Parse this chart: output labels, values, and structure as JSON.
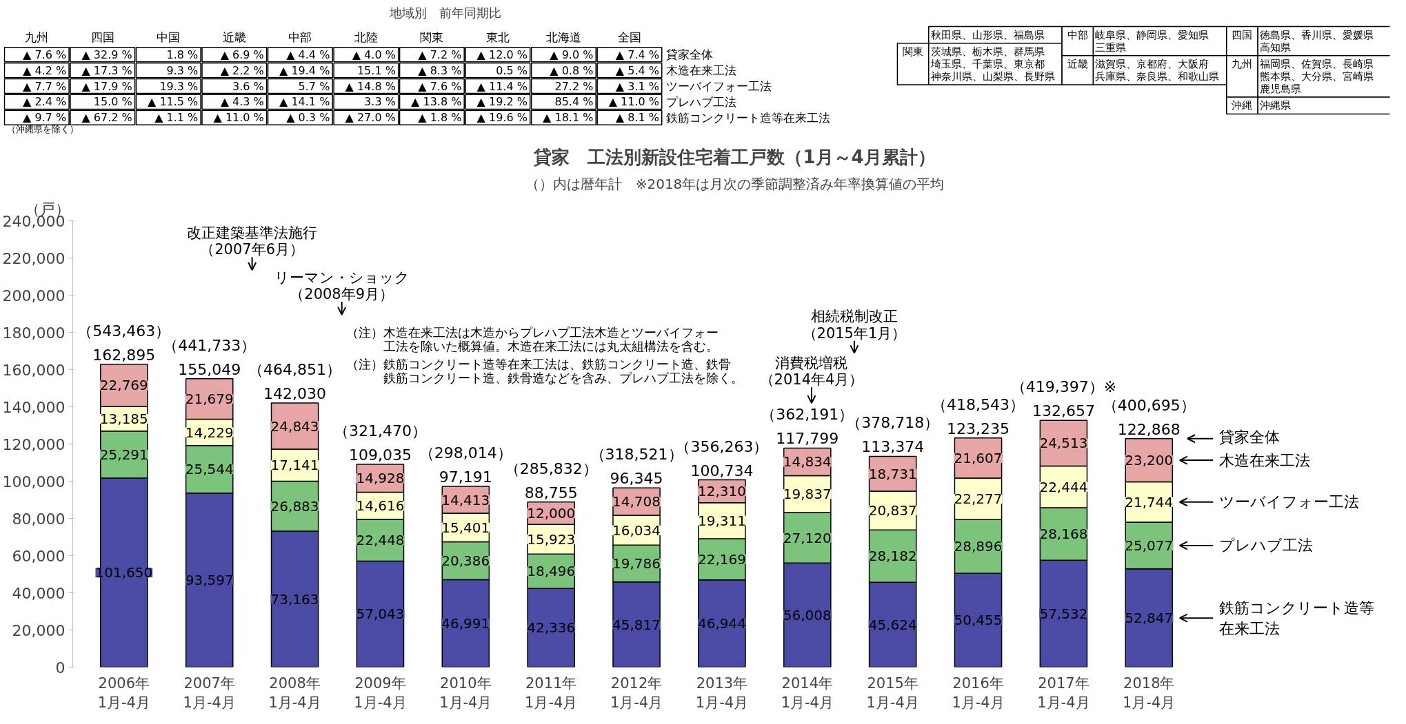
{
  "chart_data": [
    {
      "type": "bar",
      "title": "貸家　工法別新設住宅着工戸数（1月～4月累計）",
      "subtitle": "（）内は暦年計　※2018年は月次の季節調整済み年率換算値の平均",
      "ylabel": "（戸）",
      "categories": [
        "2006年\n1月-4月",
        "2007年\n1月-4月",
        "2008年\n1月-4月",
        "2009年\n1月-4月",
        "2010年\n1月-4月",
        "2011年\n1月-4月",
        "2012年\n1月-4月",
        "2013年\n1月-4月",
        "2014年\n1月-4月",
        "2015年\n1月-4月",
        "2016年\n1月-4月",
        "2017年\n1月-4月",
        "2018年\n1月-4月"
      ],
      "stacked": true,
      "legend": "right",
      "series": [
        {
          "name": "鉄筋コンクリート造等在来工法",
          "color": "#4b4ba6",
          "values": [
            101650,
            93597,
            73163,
            57043,
            46991,
            42336,
            45817,
            46944,
            56008,
            45624,
            50455,
            57532,
            52847
          ],
          "value_labels": [
            "101,650",
            "93,597",
            "73,163",
            "57,043",
            "46,991",
            "42,336",
            "45,817",
            "46,944",
            "56,008",
            "45,624",
            "50,455",
            "57,532",
            "52,847"
          ]
        },
        {
          "name": "プレハブ工法",
          "color": "#7cc47c",
          "values": [
            25291,
            25544,
            26883,
            22448,
            20386,
            18496,
            19786,
            22169,
            27120,
            28182,
            28896,
            28168,
            25077
          ],
          "value_labels": [
            "25,291",
            "25,544",
            "26,883",
            "22,448",
            "20,386",
            "18,496",
            "19,786",
            "22,169",
            "27,120",
            "28,182",
            "28,896",
            "28,168",
            "25,077"
          ]
        },
        {
          "name": "ツーバイフォー工法",
          "color": "#ffffcc",
          "values": [
            13185,
            14229,
            17141,
            14616,
            15401,
            15923,
            16034,
            19311,
            19837,
            20837,
            22277,
            22444,
            21744
          ],
          "value_labels": [
            "13,185",
            "14,229",
            "17,141",
            "14,616",
            "15,401",
            "15,923",
            "16,034",
            "19,311",
            "19,837",
            "20,837",
            "22,277",
            "22,444",
            "21,744"
          ]
        },
        {
          "name": "木造在来工法",
          "color": "#e6a6a6",
          "values": [
            22769,
            21679,
            24843,
            14928,
            14413,
            12000,
            14708,
            12310,
            14834,
            18731,
            21607,
            24513,
            23200
          ],
          "value_labels": [
            "22,769",
            "21,679",
            "24,843",
            "14,928",
            "14,413",
            "12,000",
            "14,708",
            "12,310",
            "14,834",
            "18,731",
            "21,607",
            "24,513",
            "23,200"
          ]
        }
      ],
      "totals": [
        "162,895",
        "155,049",
        "142,030",
        "109,035",
        "97,191",
        "88,755",
        "96,345",
        "100,734",
        "117,799",
        "113,374",
        "123,235",
        "132,657",
        "122,868"
      ],
      "ylim": [
        0,
        240000
      ],
      "yticks": [
        {
          "value": 0,
          "label": "0"
        },
        {
          "value": 20000,
          "label": "20,000"
        },
        {
          "value": 40000,
          "label": "40,000"
        },
        {
          "value": 60000,
          "label": "60,000"
        },
        {
          "value": 80000,
          "label": "80,000"
        },
        {
          "value": 100000,
          "label": "100,000"
        },
        {
          "value": 120000,
          "label": "120,000"
        },
        {
          "value": 140000,
          "label": "140,000"
        },
        {
          "value": 160000,
          "label": "160,000"
        },
        {
          "value": 180000,
          "label": "180,000"
        },
        {
          "value": 200000,
          "label": "200,000"
        },
        {
          "value": 220000,
          "label": "220,000"
        },
        {
          "value": 240000,
          "label": "240,000"
        }
      ],
      "annotations": [
        "改正建築基準法施行",
        "（2007年6月）",
        "リーマン・ショック",
        "（2008年9月）",
        "消費税増税",
        "（2014年4月）",
        "相続税制改正",
        "（2015年1月）",
        "（注）木造在来工法は木造からプレハブ工法木造とツーバイフォー",
        "工法を除いた概算値。木造在来工法には丸太組構法を含む。",
        "（注）鉄筋コンクリート造等在来工法は、鉄筋コンクリート造、鉄骨",
        "鉄筋コンクリート造、鉄骨造などを含み、プレハブ工法を除く。",
        "貸家全体",
        {
          "text": "（543,463）",
          "x": "2006年\n1月-4月",
          "y": 162895
        },
        {
          "text": "（441,733）",
          "x": "2007年\n1月-4月",
          "y": 155049
        },
        {
          "text": "（464,851）",
          "x": "2008年\n1月-4月",
          "y": 142030
        },
        {
          "text": "（321,470）",
          "x": "2009年\n1月-4月",
          "y": 109035
        },
        {
          "text": "（298,014）",
          "x": "2010年\n1月-4月",
          "y": 97191
        },
        {
          "text": "（285,832）",
          "x": "2011年\n1月-4月",
          "y": 88755
        },
        {
          "text": "（318,521）",
          "x": "2012年\n1月-4月",
          "y": 96345
        },
        {
          "text": "（356,263）",
          "x": "2013年\n1月-4月",
          "y": 100734
        },
        {
          "text": "（362,191）",
          "x": "2014年\n1月-4月",
          "y": 117799
        },
        {
          "text": "（378,718）",
          "x": "2015年\n1月-4月",
          "y": 113374
        },
        {
          "text": "（418,543）",
          "x": "2016年\n1月-4月",
          "y": 123235
        },
        {
          "text": "（419,397）※",
          "x": "2017年\n1月-4月",
          "y": 132657
        },
        {
          "text": "（400,695）",
          "x": "2018年\n1月-4月",
          "y": 122868
        }
      ]
    },
    {
      "type": "other",
      "title": "地域別　前年同期比",
      "categories": [
        "九州",
        "四国",
        "中国",
        "近畿",
        "中部",
        "北陸",
        "関東",
        "東北",
        "北海道",
        "全国"
      ],
      "y2_categories": [
        "貸家全体",
        "木造在来工法",
        "ツーバイフォー工法",
        "プレハブ工法",
        "鉄筋コンクリート造等在来工法"
      ],
      "cell_labels": [
        [
          "▲ 7.6 %",
          "▲ 32.9 %",
          "1.8 %",
          "▲ 6.9 %",
          "▲ 4.4 %",
          "▲ 4.0 %",
          "▲ 7.2 %",
          "▲ 12.0 %",
          "▲ 9.0 %",
          "▲ 7.4 %"
        ],
        [
          "▲ 4.2 %",
          "▲ 17.3 %",
          "9.3 %",
          "▲ 2.2 %",
          "▲ 19.4 %",
          "15.1 %",
          "▲ 8.3 %",
          "0.5 %",
          "▲ 0.8 %",
          "▲ 5.4 %"
        ],
        [
          "▲ 7.7 %",
          "▲ 17.9 %",
          "19.3 %",
          "3.6 %",
          "5.7 %",
          "▲ 14.8 %",
          "▲ 7.6 %",
          "▲ 11.4 %",
          "27.2 %",
          "▲ 3.1 %"
        ],
        [
          "▲ 2.4 %",
          "15.0 %",
          "▲ 11.5 %",
          "▲ 4.3 %",
          "▲ 14.1 %",
          "3.3 %",
          "▲ 13.8 %",
          "▲ 19.2 %",
          "85.4 %",
          "▲ 11.0 %"
        ],
        [
          "▲ 9.7 %",
          "▲ 67.2 %",
          "▲ 1.1 %",
          "▲ 11.0 %",
          "▲ 0.3 %",
          "▲ 27.0 %",
          "▲ 1.8 %",
          "▲ 19.6 %",
          "▲ 18.1 %",
          "▲ 8.1 %"
        ]
      ],
      "annotations": [
        "（沖縄県を除く）"
      ]
    },
    {
      "type": "other",
      "annotations": [
        "秋田県、山形県、福島県",
        "関東",
        "茨城県、栃木県、群馬県",
        "埼玉県、千葉県、東京都",
        "神奈川県、山梨県、長野県",
        "中部",
        "岐阜県、静岡県、愛知県",
        "三重県",
        "近畿",
        "滋賀県、京都府、大阪府",
        "兵庫県、奈良県、和歌山県",
        "四国",
        "徳島県、香川県、愛媛県",
        "高知県",
        "九州",
        "福岡県、佐賀県、長崎県",
        "熊本県、大分県、宮崎県",
        "鹿児島県",
        "沖縄",
        "沖縄県"
      ]
    }
  ]
}
